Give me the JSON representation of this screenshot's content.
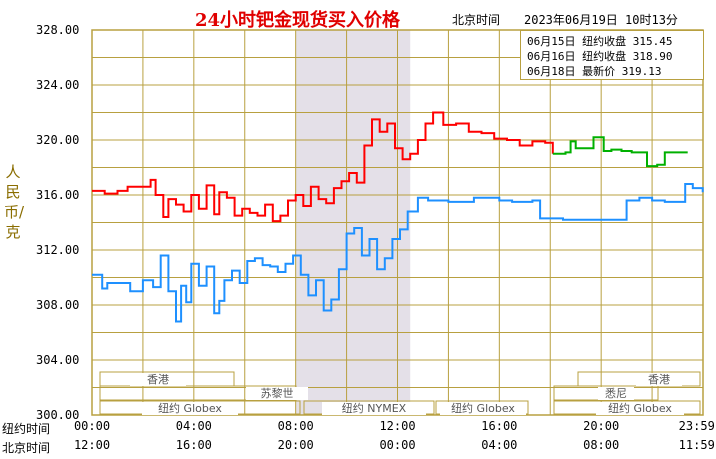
{
  "header": {
    "title": "24小时钯金现货买入价格",
    "tz": "北京时间",
    "timestamp": "2023年06月19日 10时13分"
  },
  "colors": {
    "series_0": "#1e90ff",
    "series_1": "#ff0000",
    "series_2": "#00b000",
    "grid": "#b8a040",
    "shade": "#e4e0e8"
  },
  "legend": [
    {
      "date": "06月15日",
      "label": "纽约收盘",
      "value": "315.45",
      "color": "#1e90ff"
    },
    {
      "date": "06月16日",
      "label": "纽约收盘",
      "value": "318.90",
      "color": "#ff0000"
    },
    {
      "date": "06月18日",
      "label": "最新价",
      "value": "319.13",
      "color": "#00b000"
    }
  ],
  "markets": {
    "hk": "香港",
    "zurich": "苏黎世",
    "globex": "纽约 Globex",
    "nymex": "纽约 NYMEX",
    "ldn": "悉尼",
    "globex2": "纽约 Globex",
    "globex3": "纽约 Globex",
    "hk2": "香港"
  },
  "chart_data": {
    "type": "line",
    "title": "24小时钯金现货买入价格",
    "ylabel": "人民币/克",
    "ylim": [
      300,
      328
    ],
    "yticks": [
      "328.00",
      "324.00",
      "320.00",
      "316.00",
      "312.00",
      "308.00",
      "304.00",
      "300.00"
    ],
    "x_row_labels": [
      "纽约时间",
      "北京时间"
    ],
    "xticks_ny": [
      "00:00",
      "04:00",
      "08:00",
      "12:00",
      "16:00",
      "20:00",
      "23:59"
    ],
    "xticks_bj": [
      "12:00",
      "16:00",
      "20:00",
      "00:00",
      "04:00",
      "08:00",
      "11:59"
    ],
    "shaded_ny_hours": [
      8,
      12.5
    ],
    "grid": true,
    "series": [
      {
        "name": "06月15日",
        "color": "#1e90ff",
        "x": [
          0,
          0.4,
          0.6,
          1,
          1.5,
          2,
          2.4,
          2.7,
          3,
          3.3,
          3.5,
          3.7,
          3.9,
          4.2,
          4.5,
          4.8,
          5,
          5.2,
          5.5,
          5.8,
          6.1,
          6.4,
          6.7,
          7,
          7.3,
          7.6,
          7.9,
          8.2,
          8.5,
          8.8,
          9.1,
          9.4,
          9.7,
          10,
          10.3,
          10.6,
          10.9,
          11.2,
          11.5,
          11.8,
          12.1,
          12.4,
          12.8,
          13.2,
          14,
          15,
          16,
          16.5,
          16.9,
          17.3,
          17.6,
          17.9,
          18.5,
          19.5,
          20.5,
          21,
          21.5,
          22,
          22.5,
          23,
          23.3,
          23.6,
          23.99
        ],
        "y": [
          310.2,
          309.2,
          309.6,
          309.6,
          309.0,
          309.8,
          309.3,
          311.6,
          309.0,
          306.8,
          309.4,
          308.2,
          311.0,
          309.4,
          310.8,
          307.4,
          308.3,
          309.8,
          310.5,
          309.6,
          311.2,
          311.4,
          310.9,
          310.8,
          310.4,
          311.0,
          311.6,
          310.2,
          308.7,
          309.8,
          307.6,
          308.4,
          310.6,
          313.2,
          313.6,
          311.6,
          312.8,
          310.6,
          311.4,
          312.8,
          313.5,
          314.8,
          315.8,
          315.6,
          315.5,
          315.8,
          315.6,
          315.5,
          315.5,
          315.6,
          314.3,
          314.3,
          314.2,
          314.2,
          314.2,
          315.6,
          315.8,
          315.6,
          315.5,
          315.5,
          316.8,
          316.5,
          316.2
        ]
      },
      {
        "name": "06月16日",
        "color": "#ff0000",
        "x": [
          0,
          0.5,
          1,
          1.4,
          1.9,
          2.3,
          2.5,
          2.8,
          3.0,
          3.3,
          3.6,
          3.9,
          4.2,
          4.5,
          4.8,
          5.0,
          5.3,
          5.6,
          5.9,
          6.2,
          6.5,
          6.8,
          7.1,
          7.4,
          7.7,
          8.0,
          8.3,
          8.6,
          8.9,
          9.2,
          9.5,
          9.8,
          10.1,
          10.4,
          10.7,
          11.0,
          11.3,
          11.6,
          11.9,
          12.2,
          12.5,
          12.8,
          13.1,
          13.4,
          13.8,
          14.3,
          14.8,
          15.3,
          15.8,
          16.3,
          16.8,
          17.3,
          17.8,
          18.1
        ],
        "y": [
          316.3,
          316.1,
          316.3,
          316.6,
          316.6,
          317.1,
          316.0,
          314.4,
          315.7,
          315.3,
          314.8,
          316.0,
          315.0,
          316.7,
          314.6,
          316.2,
          315.8,
          314.5,
          315.0,
          314.7,
          314.5,
          315.3,
          314.1,
          314.5,
          315.6,
          316.0,
          315.2,
          316.6,
          315.7,
          315.4,
          316.5,
          317.0,
          317.6,
          316.9,
          319.6,
          321.5,
          320.6,
          321.2,
          319.4,
          318.6,
          319.0,
          320.0,
          321.2,
          322.0,
          321.1,
          321.2,
          320.6,
          320.5,
          320.1,
          320.0,
          319.6,
          319.9,
          319.8,
          319.0
        ]
      },
      {
        "name": "06月18日",
        "color": "#00b000",
        "x": [
          18.1,
          18.6,
          18.8,
          19.0,
          19.4,
          19.7,
          20.1,
          20.4,
          20.8,
          21.2,
          21.8,
          22.2,
          22.5,
          22.8,
          23.1,
          23.4
        ],
        "y": [
          319.0,
          319.1,
          319.9,
          319.4,
          319.4,
          320.2,
          319.2,
          319.3,
          319.2,
          319.1,
          318.1,
          318.2,
          319.1,
          319.1,
          319.1,
          319.1
        ]
      }
    ]
  }
}
